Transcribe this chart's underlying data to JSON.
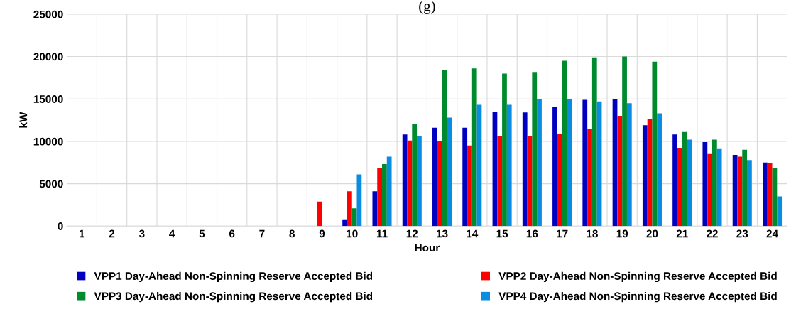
{
  "chart_data": {
    "type": "bar",
    "title": "(g)",
    "xlabel": "Hour",
    "ylabel": "kW",
    "categories": [
      "1",
      "2",
      "3",
      "4",
      "5",
      "6",
      "7",
      "8",
      "9",
      "10",
      "11",
      "12",
      "13",
      "14",
      "15",
      "16",
      "17",
      "18",
      "19",
      "20",
      "21",
      "22",
      "23",
      "24"
    ],
    "series": [
      {
        "name": "VPP1 Day-Ahead Non-Spinning Reserve Accepted Bid",
        "color": "#0000c0",
        "values": [
          0,
          0,
          0,
          0,
          0,
          0,
          0,
          0,
          0,
          800,
          4100,
          10800,
          11600,
          11600,
          13500,
          13400,
          14100,
          14900,
          15000,
          11900,
          10800,
          9900,
          8400,
          7500
        ]
      },
      {
        "name": "VPP2 Day-Ahead Non-Spinning Reserve Accepted Bid",
        "color": "#ff0000",
        "values": [
          0,
          0,
          0,
          0,
          0,
          0,
          0,
          0,
          2900,
          4100,
          6900,
          10100,
          10000,
          9500,
          10600,
          10600,
          10900,
          11500,
          13000,
          12600,
          9200,
          8500,
          8200,
          7400
        ]
      },
      {
        "name": "VPP3 Day-Ahead Non-Spinning Reserve Accepted Bid",
        "color": "#008a2e",
        "values": [
          0,
          0,
          0,
          0,
          0,
          0,
          0,
          0,
          0,
          2100,
          7300,
          12000,
          18400,
          18600,
          18000,
          18100,
          19500,
          19900,
          20000,
          19400,
          11100,
          10200,
          9000,
          6900
        ]
      },
      {
        "name": "VPP4 Day-Ahead Non-Spinning Reserve Accepted Bid",
        "color": "#0a8ce0",
        "values": [
          0,
          0,
          0,
          0,
          0,
          0,
          0,
          0,
          0,
          6100,
          8200,
          10600,
          12800,
          14300,
          14300,
          15000,
          15000,
          14700,
          14500,
          13300,
          10200,
          9100,
          7800,
          3500
        ]
      }
    ],
    "ylim": [
      0,
      25000
    ],
    "yticks": [
      0,
      5000,
      10000,
      15000,
      20000,
      25000
    ],
    "grid": true,
    "legend": "bottom"
  }
}
